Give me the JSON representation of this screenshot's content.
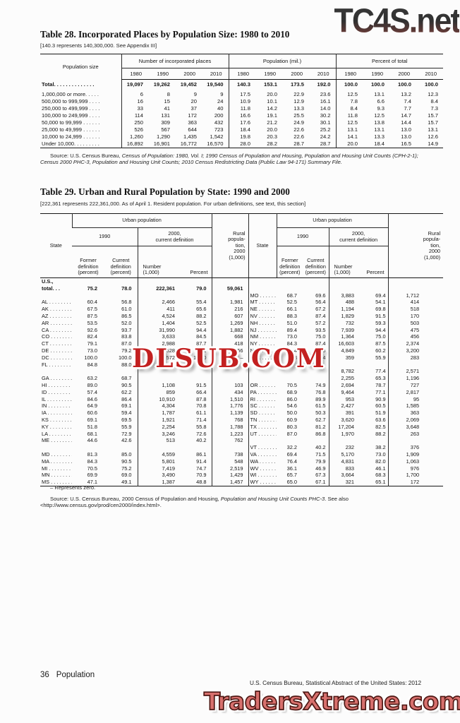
{
  "watermarks": {
    "top": "TC4S.net",
    "middle": "DLSUB.COM",
    "bottom": "TradersXtreme.com"
  },
  "table28": {
    "title": "Table 28. Incorporated Places by Population Size: 1980 to 2010",
    "note": "[140.3 represents 140,300,000. See Appendix III]",
    "row_header": "Population size",
    "groups": [
      "Number of incorporated places",
      "Population (mil.)",
      "Percent of total"
    ],
    "years": [
      "1980",
      "1990",
      "2000",
      "2010"
    ],
    "rows": [
      {
        "label": "Total. . . . . . . . . . . . . .",
        "bold": true,
        "values": [
          "19,097",
          "19,262",
          "19,452",
          "19,540",
          "140.3",
          "153.1",
          "173.5",
          "192.0",
          "100.0",
          "100.0",
          "100.0",
          "100.0"
        ]
      },
      {
        "label": "1,000,000 or more. . . . .",
        "values": [
          "6",
          "8",
          "9",
          "9",
          "17.5",
          "20.0",
          "22.9",
          "23.6",
          "12.5",
          "13.1",
          "13.2",
          "12.3"
        ]
      },
      {
        "label": "500,000 to 999,999 . . . .",
        "values": [
          "16",
          "15",
          "20",
          "24",
          "10.9",
          "10.1",
          "12.9",
          "16.1",
          "7.8",
          "6.6",
          "7.4",
          "8.4"
        ]
      },
      {
        "label": "250,000 to 499,999 . . . .",
        "values": [
          "33",
          "41",
          "37",
          "40",
          "11.8",
          "14.2",
          "13.3",
          "14.0",
          "8.4",
          "9.3",
          "7.7",
          "7.3"
        ]
      },
      {
        "label": "100,000 to 249,999 . . . .",
        "values": [
          "114",
          "131",
          "172",
          "200",
          "16.6",
          "19.1",
          "25.5",
          "30.2",
          "11.8",
          "12.5",
          "14.7",
          "15.7"
        ]
      },
      {
        "label": "50,000 to 99,999 . . . . . .",
        "values": [
          "250",
          "309",
          "363",
          "432",
          "17.6",
          "21.2",
          "24.9",
          "30.1",
          "12.5",
          "13.8",
          "14.4",
          "15.7"
        ]
      },
      {
        "label": "25,000 to 49,999 . . . . . .",
        "values": [
          "526",
          "567",
          "644",
          "723",
          "18.4",
          "20.0",
          "22.6",
          "25.2",
          "13.1",
          "13.1",
          "13.0",
          "13.1"
        ]
      },
      {
        "label": "10,000 to 24,999 . . . . . .",
        "values": [
          "1,260",
          "1,290",
          "1,435",
          "1,542",
          "19.8",
          "20.3",
          "22.6",
          "24.2",
          "14.1",
          "13.3",
          "13.0",
          "12.6"
        ]
      },
      {
        "label": "Under 10,000. . . . . . . . .",
        "values": [
          "16,892",
          "16,901",
          "16,772",
          "16,570",
          "28.0",
          "28.2",
          "28.7",
          "28.7",
          "20.0",
          "18.4",
          "16.5",
          "14.9"
        ]
      }
    ],
    "source_segments": [
      {
        "text": "Source: U.S. Census Bureau, ",
        "italic": false
      },
      {
        "text": "Census of Population: 1980, Vol. I; 1990 Census of Population and Housing, Population and Housing Unit Counts (CPH-2-1); Census 2000 PHC-3, Population and Housing Unit Counts; 2010 Census Redistricting Data (Public Law 94-171) Summary File.",
        "italic": true
      }
    ]
  },
  "table29": {
    "title": "Table 29. Urban and Rural Population by State: 1990 and 2000",
    "note": "[222,361 represents 222,361,000. As of April 1. Resident population. For urban definitions, see text, this section]",
    "header": {
      "state": "State",
      "urban": "Urban population",
      "y1990": "1990",
      "y2000": "2000,\ncurrent definition",
      "former": "Former\ndefinition\n(percent)",
      "current": "Current\ndefinition\n(percent)",
      "number": "Number\n(1,000)",
      "percent": "Percent",
      "rural": "Rural\npopula-\ntion,\n2000\n(1,000)"
    },
    "left_rows": [
      {
        "label": "U.S.,",
        "bold": true
      },
      {
        "label": "total. . .",
        "bold": true,
        "values": [
          "75.2",
          "78.0",
          "222,361",
          "79.0",
          "59,061"
        ]
      },
      null,
      {
        "state": "AL",
        "values": [
          "60.4",
          "56.8",
          "2,466",
          "55.4",
          "1,981"
        ]
      },
      {
        "state": "AK",
        "values": [
          "67.5",
          "61.0",
          "411",
          "65.6",
          "216"
        ]
      },
      {
        "state": "AZ",
        "values": [
          "87.5",
          "86.5",
          "4,524",
          "88.2",
          "607"
        ]
      },
      {
        "state": "AR",
        "values": [
          "53.5",
          "52.0",
          "1,404",
          "52.5",
          "1,269"
        ]
      },
      {
        "state": "CA",
        "values": [
          "92.6",
          "93.7",
          "31,990",
          "94.4",
          "1,882"
        ]
      },
      {
        "state": "CO",
        "values": [
          "82.4",
          "83.8",
          "3,633",
          "84.5",
          "668"
        ]
      },
      {
        "state": "CT",
        "values": [
          "79.1",
          "87.0",
          "2,988",
          "87.7",
          "418"
        ]
      },
      {
        "state": "DE",
        "values": [
          "73.0",
          "79.2",
          "628",
          "80.1",
          "156"
        ]
      },
      {
        "state": "DC",
        "values": [
          "100.0",
          "100.0",
          "572",
          "100.0",
          "–"
        ]
      },
      {
        "state": "FL",
        "values": [
          "84.8",
          "88.0",
          "",
          "",
          ""
        ]
      },
      null,
      {
        "state": "GA",
        "values": [
          "63.2",
          "68.7",
          "",
          "",
          ""
        ]
      },
      {
        "state": "HI",
        "values": [
          "89.0",
          "90.5",
          "1,108",
          "91.5",
          "103"
        ]
      },
      {
        "state": "ID",
        "values": [
          "57.4",
          "62.2",
          "859",
          "66.4",
          "434"
        ]
      },
      {
        "state": "IL",
        "values": [
          "84.6",
          "86.4",
          "10,910",
          "87.8",
          "1,510"
        ]
      },
      {
        "state": "IN",
        "values": [
          "64.9",
          "69.1",
          "4,304",
          "70.8",
          "1,776"
        ]
      },
      {
        "state": "IA",
        "values": [
          "60.6",
          "59.4",
          "1,787",
          "61.1",
          "1,139"
        ]
      },
      {
        "state": "KS",
        "values": [
          "69.1",
          "69.5",
          "1,921",
          "71.4",
          "768"
        ]
      },
      {
        "state": "KY",
        "values": [
          "51.8",
          "55.9",
          "2,254",
          "55.8",
          "1,788"
        ]
      },
      {
        "state": "LA",
        "values": [
          "68.1",
          "72.9",
          "3,246",
          "72.6",
          "1,223"
        ]
      },
      {
        "state": "ME",
        "values": [
          "44.6",
          "42.6",
          "513",
          "40.2",
          "762"
        ]
      },
      null,
      {
        "state": "MD",
        "values": [
          "81.3",
          "85.0",
          "4,559",
          "86.1",
          "738"
        ]
      },
      {
        "state": "MA",
        "values": [
          "84.3",
          "90.5",
          "5,801",
          "91.4",
          "548"
        ]
      },
      {
        "state": "MI",
        "values": [
          "70.5",
          "75.2",
          "7,419",
          "74.7",
          "2,519"
        ]
      },
      {
        "state": "MN",
        "values": [
          "69.9",
          "69.0",
          "3,490",
          "70.9",
          "1,429"
        ]
      },
      {
        "state": "MS",
        "values": [
          "47.1",
          "49.1",
          "1,387",
          "48.8",
          "1,457"
        ]
      }
    ],
    "right_rows": [
      null,
      null,
      {
        "state": "MO",
        "values": [
          "68.7",
          "69.6",
          "3,883",
          "69.4",
          "1,712"
        ]
      },
      {
        "state": "MT",
        "values": [
          "52.5",
          "56.4",
          "488",
          "54.1",
          "414"
        ]
      },
      {
        "state": "NE",
        "values": [
          "66.1",
          "67.2",
          "1,194",
          "69.8",
          "518"
        ]
      },
      {
        "state": "NV",
        "values": [
          "88.3",
          "87.4",
          "1,829",
          "91.5",
          "170"
        ]
      },
      {
        "state": "NH",
        "values": [
          "51.0",
          "57.2",
          "732",
          "59.3",
          "503"
        ]
      },
      {
        "state": "NJ",
        "values": [
          "89.4",
          "93.5",
          "7,939",
          "94.4",
          "475"
        ]
      },
      {
        "state": "NM",
        "values": [
          "73.0",
          "75.0",
          "1,364",
          "75.0",
          "456"
        ]
      },
      {
        "state": "NY",
        "values": [
          "84.3",
          "87.4",
          "16,603",
          "87.5",
          "2,374"
        ]
      },
      {
        "state": "NC",
        "values": [
          "50.4",
          "57.8",
          "4,849",
          "60.2",
          "3,200"
        ]
      },
      {
        "state": "ND",
        "values": [
          "53.3",
          "53.4",
          "359",
          "55.9",
          "283"
        ]
      },
      null,
      {
        "state": "",
        "values": [
          "",
          "",
          "8,782",
          "77.4",
          "2,571"
        ]
      },
      {
        "state": "",
        "values": [
          "",
          "",
          "2,255",
          "65.3",
          "1,196"
        ]
      },
      {
        "state": "OR",
        "values": [
          "70.5",
          "74.9",
          "2,694",
          "78.7",
          "727"
        ]
      },
      {
        "state": "PA",
        "values": [
          "68.9",
          "76.8",
          "9,464",
          "77.1",
          "2,817"
        ]
      },
      {
        "state": "RI",
        "values": [
          "86.0",
          "89.9",
          "953",
          "90.9",
          "95"
        ]
      },
      {
        "state": "SC",
        "values": [
          "54.6",
          "61.5",
          "2,427",
          "60.5",
          "1,585"
        ]
      },
      {
        "state": "SD",
        "values": [
          "50.0",
          "50.3",
          "391",
          "51.9",
          "363"
        ]
      },
      {
        "state": "TN",
        "values": [
          "60.9",
          "62.7",
          "3,620",
          "63.6",
          "2,069"
        ]
      },
      {
        "state": "TX",
        "values": [
          "80.3",
          "81.2",
          "17,204",
          "82.5",
          "3,648"
        ]
      },
      {
        "state": "UT",
        "values": [
          "87.0",
          "86.8",
          "1,970",
          "88.2",
          "263"
        ]
      },
      null,
      {
        "state": "VT",
        "values": [
          "32.2",
          "40.2",
          "232",
          "38.2",
          "376"
        ]
      },
      {
        "state": "VA",
        "values": [
          "69.4",
          "71.5",
          "5,170",
          "73.0",
          "1,909"
        ]
      },
      {
        "state": "WA",
        "values": [
          "76.4",
          "79.9",
          "4,831",
          "82.0",
          "1,063"
        ]
      },
      {
        "state": "WV",
        "values": [
          "36.1",
          "46.9",
          "833",
          "46.1",
          "976"
        ]
      },
      {
        "state": "WI",
        "values": [
          "65.7",
          "67.3",
          "3,664",
          "68.3",
          "1,700"
        ]
      },
      {
        "state": "WY",
        "values": [
          "65.0",
          "67.1",
          "321",
          "65.1",
          "172"
        ]
      }
    ],
    "footnote": "– Represents zero.",
    "source_segments": [
      {
        "text": "Source: U.S. Census Bureau, 2000 Census of Population and Housing, ",
        "italic": false
      },
      {
        "text": "Population and Housing Unit Counts PHC-3",
        "italic": true
      },
      {
        "text": ". See also <http://www.census.gov/prod/cen2000/index.html>.",
        "italic": false
      }
    ]
  },
  "footer": {
    "page_number": "36",
    "section": "Population",
    "credit": "U.S. Census Bureau, Statistical Abstract of the United States: 2012"
  }
}
